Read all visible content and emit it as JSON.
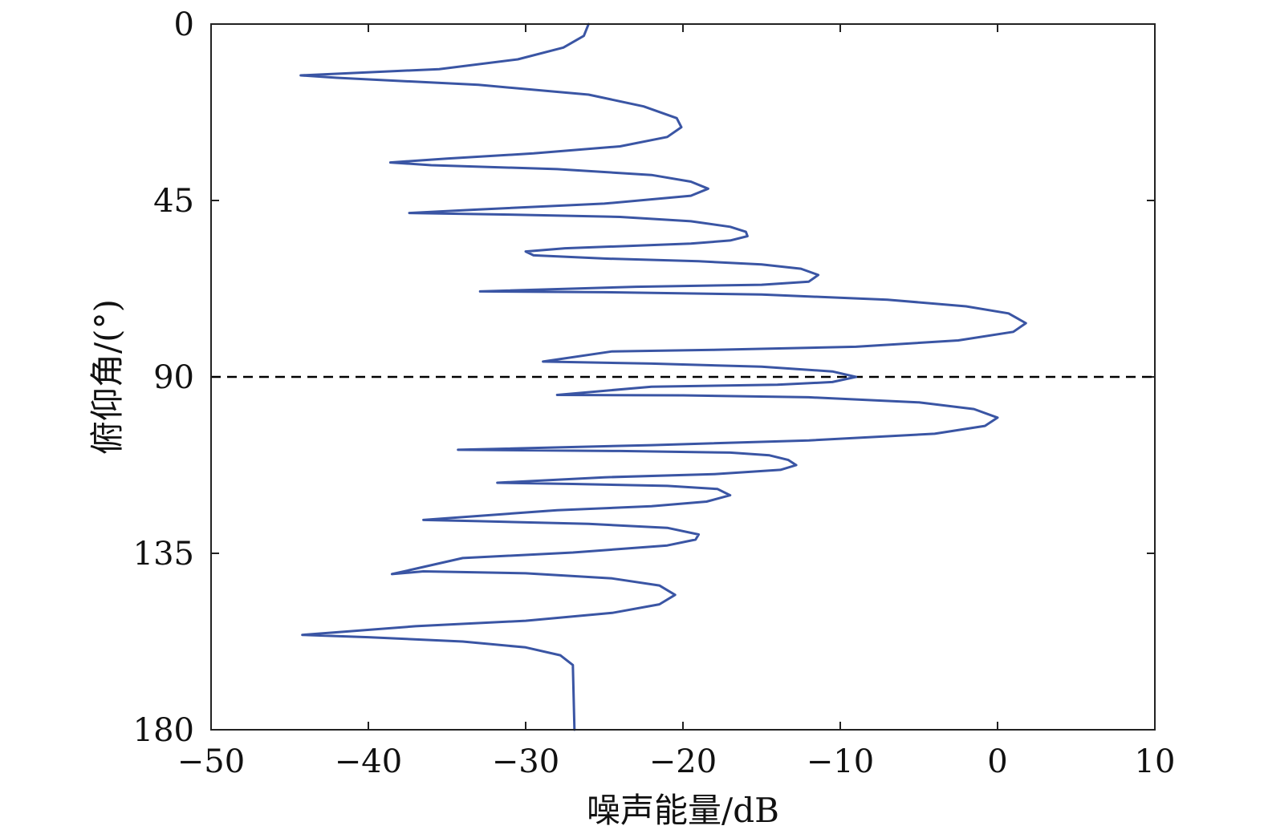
{
  "chart_data": {
    "type": "line",
    "xlabel": "噪声能量/dB",
    "ylabel": "俯仰角/(°)",
    "xlim": [
      -50,
      10
    ],
    "ylim": [
      0,
      180
    ],
    "y_inverted": true,
    "x_ticks": [
      -50,
      -40,
      -30,
      -20,
      -10,
      0,
      10
    ],
    "x_tick_labels": [
      "−50",
      "−40",
      "−30",
      "−20",
      "−10",
      "0",
      "10"
    ],
    "y_ticks": [
      0,
      45,
      90,
      135,
      180
    ],
    "y_tick_labels": [
      "0",
      "45",
      "90",
      "135",
      "180"
    ],
    "grid": false,
    "reference_line": {
      "y": 90,
      "style": "dashed",
      "color": "#000000"
    },
    "series": [
      {
        "color": "#3a55a4",
        "points": [
          [
            -26.0,
            0
          ],
          [
            -26.3,
            3
          ],
          [
            -27.6,
            6
          ],
          [
            -30.5,
            9
          ],
          [
            -35.5,
            11.5
          ],
          [
            -44.3,
            13.1
          ],
          [
            -42.0,
            13.7
          ],
          [
            -33.0,
            15.5
          ],
          [
            -26.0,
            18
          ],
          [
            -22.5,
            21
          ],
          [
            -20.4,
            24
          ],
          [
            -20.1,
            26.3
          ],
          [
            -21.0,
            28.8
          ],
          [
            -24.0,
            31.2
          ],
          [
            -29.5,
            33
          ],
          [
            -35.0,
            34.3
          ],
          [
            -38.6,
            35.3
          ],
          [
            -36.0,
            36.0
          ],
          [
            -28.0,
            37
          ],
          [
            -22.0,
            38.5
          ],
          [
            -19.5,
            40.2
          ],
          [
            -18.4,
            42.0
          ],
          [
            -19.5,
            43.8
          ],
          [
            -25.0,
            45.8
          ],
          [
            -33.0,
            47.3
          ],
          [
            -37.4,
            48.2
          ],
          [
            -31.0,
            48.6
          ],
          [
            -24.0,
            49.2
          ],
          [
            -19.5,
            50.3
          ],
          [
            -17.0,
            51.7
          ],
          [
            -16.0,
            53.0
          ],
          [
            -15.9,
            54.1
          ],
          [
            -17.0,
            55.2
          ],
          [
            -19.5,
            56.0
          ],
          [
            -23.5,
            56.6
          ],
          [
            -27.5,
            57.2
          ],
          [
            -30.0,
            58.0
          ],
          [
            -29.5,
            59.0
          ],
          [
            -25.0,
            59.8
          ],
          [
            -19.0,
            60.5
          ],
          [
            -15.0,
            61.3
          ],
          [
            -12.5,
            62.4
          ],
          [
            -11.4,
            64.0
          ],
          [
            -12.0,
            65.7
          ],
          [
            -15.0,
            66.5
          ],
          [
            -23.0,
            67.0
          ],
          [
            -32.9,
            68.2
          ],
          [
            -25.0,
            68.4
          ],
          [
            -15.0,
            69.0
          ],
          [
            -7.0,
            70.3
          ],
          [
            -2.0,
            72.0
          ],
          [
            0.7,
            73.8
          ],
          [
            1.8,
            76.3
          ],
          [
            1.0,
            78.5
          ],
          [
            -2.5,
            80.7
          ],
          [
            -9.0,
            82.3
          ],
          [
            -18.0,
            83.1
          ],
          [
            -24.5,
            83.5
          ],
          [
            -28.9,
            86.1
          ],
          [
            -22.0,
            86.6
          ],
          [
            -15.0,
            87.4
          ],
          [
            -10.5,
            88.6
          ],
          [
            -9.0,
            90.0
          ],
          [
            -10.5,
            91.3
          ],
          [
            -14.0,
            92.0
          ],
          [
            -22.0,
            92.5
          ],
          [
            -28.0,
            94.6
          ],
          [
            -20.0,
            94.7
          ],
          [
            -12.0,
            95.2
          ],
          [
            -5.0,
            96.5
          ],
          [
            -1.5,
            98.2
          ],
          [
            0.0,
            100.4
          ],
          [
            -0.8,
            102.5
          ],
          [
            -4.0,
            104.5
          ],
          [
            -12.0,
            106.2
          ],
          [
            -22.0,
            107.4
          ],
          [
            -34.3,
            108.6
          ],
          [
            -24.0,
            108.9
          ],
          [
            -17.0,
            109.3
          ],
          [
            -14.5,
            110.0
          ],
          [
            -13.3,
            111.2
          ],
          [
            -12.8,
            112.5
          ],
          [
            -13.8,
            113.7
          ],
          [
            -18.0,
            114.8
          ],
          [
            -25.0,
            115.6
          ],
          [
            -31.8,
            117.0
          ],
          [
            -27.0,
            117.3
          ],
          [
            -21.0,
            117.8
          ],
          [
            -17.8,
            118.6
          ],
          [
            -17.0,
            120.2
          ],
          [
            -18.5,
            121.8
          ],
          [
            -22.0,
            123.0
          ],
          [
            -28.0,
            124.0
          ],
          [
            -36.5,
            126.5
          ],
          [
            -33.0,
            126.8
          ],
          [
            -26.0,
            127.5
          ],
          [
            -21.0,
            128.5
          ],
          [
            -19.0,
            130.2
          ],
          [
            -19.2,
            131.5
          ],
          [
            -21.0,
            133.0
          ],
          [
            -27.0,
            134.8
          ],
          [
            -34.0,
            136.2
          ],
          [
            -38.5,
            140.3
          ],
          [
            -36.5,
            139.6
          ],
          [
            -30.0,
            140.1
          ],
          [
            -24.5,
            141.4
          ],
          [
            -21.5,
            143.2
          ],
          [
            -20.5,
            145.6
          ],
          [
            -21.5,
            148.0
          ],
          [
            -24.5,
            150.2
          ],
          [
            -30.0,
            152.2
          ],
          [
            -37.0,
            153.6
          ],
          [
            -44.2,
            155.8
          ],
          [
            -40.0,
            156.4
          ],
          [
            -34.0,
            157.5
          ],
          [
            -30.0,
            159.0
          ],
          [
            -27.8,
            161.0
          ],
          [
            -27.0,
            163.5
          ],
          [
            -26.9,
            180
          ]
        ]
      }
    ]
  }
}
